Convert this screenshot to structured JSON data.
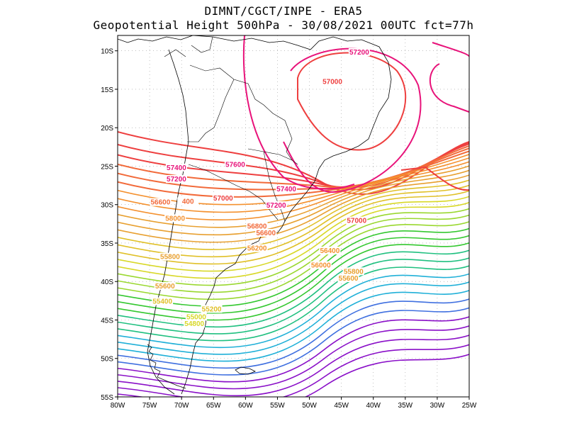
{
  "title_line1": "DIMNT/CGCT/INPE -  ERA5",
  "title_line2": "Geopotential Height 500hPa -  30/08/2021 00UTC fct=77h",
  "map": {
    "lon_range": [
      -80,
      -25
    ],
    "lat_range": [
      -55,
      -8
    ],
    "lon_ticks": [
      "80W",
      "75W",
      "70W",
      "65W",
      "60W",
      "55W",
      "50W",
      "45W",
      "40W",
      "35W",
      "30W",
      "25W"
    ],
    "lat_ticks": [
      "10S",
      "15S",
      "20S",
      "25S",
      "30S",
      "35S",
      "40S",
      "45S",
      "50S",
      "55S"
    ],
    "grid": "dotted"
  },
  "contour_labels": [
    {
      "text": "57200",
      "lon": -42.2,
      "lat": -10.4,
      "color": "#e8137a"
    },
    {
      "text": "57000",
      "lon": -46.4,
      "lat": -14.2,
      "color": "#ee3f3f"
    },
    {
      "text": "57400",
      "lon": -70.8,
      "lat": -25.4,
      "color": "#e8137a"
    },
    {
      "text": "57600",
      "lon": -61.6,
      "lat": -25.0,
      "color": "#e8137a"
    },
    {
      "text": "57200",
      "lon": -70.8,
      "lat": -26.9,
      "color": "#e8137a"
    },
    {
      "text": "57400",
      "lon": -53.6,
      "lat": -28.2,
      "color": "#e8137a"
    },
    {
      "text": "57000",
      "lon": -63.5,
      "lat": -29.4,
      "color": "#ee3f3f"
    },
    {
      "text": "56600",
      "lon": -73.3,
      "lat": -29.9,
      "color": "#f26a3a"
    },
    {
      "text": "400",
      "lon": -69.0,
      "lat": -29.8,
      "color": "#f26a3a"
    },
    {
      "text": "57200",
      "lon": -55.2,
      "lat": -30.3,
      "color": "#e8137a"
    },
    {
      "text": "57000",
      "lon": -42.6,
      "lat": -32.3,
      "color": "#ee3f3f"
    },
    {
      "text": "58000",
      "lon": -71.0,
      "lat": -32.0,
      "color": "#f4912f"
    },
    {
      "text": "56800",
      "lon": -58.2,
      "lat": -33.0,
      "color": "#f26a3a"
    },
    {
      "text": "56600",
      "lon": -56.8,
      "lat": -33.9,
      "color": "#f26a3a"
    },
    {
      "text": "56200",
      "lon": -58.2,
      "lat": -35.9,
      "color": "#f4912f"
    },
    {
      "text": "56400",
      "lon": -46.8,
      "lat": -36.2,
      "color": "#f4912f"
    },
    {
      "text": "55800",
      "lon": -71.8,
      "lat": -37.0,
      "color": "#e8a030"
    },
    {
      "text": "56000",
      "lon": -48.2,
      "lat": -38.1,
      "color": "#f4912f"
    },
    {
      "text": "55800",
      "lon": -43.1,
      "lat": -38.9,
      "color": "#e8a030"
    },
    {
      "text": "55600",
      "lon": -43.9,
      "lat": -39.8,
      "color": "#e8a030"
    },
    {
      "text": "55600",
      "lon": -72.6,
      "lat": -40.8,
      "color": "#e8a030"
    },
    {
      "text": "55400",
      "lon": -73.0,
      "lat": -42.8,
      "color": "#e0c028"
    },
    {
      "text": "55200",
      "lon": -65.3,
      "lat": -43.8,
      "color": "#e0c028"
    },
    {
      "text": "55000",
      "lon": -67.7,
      "lat": -44.8,
      "color": "#d8d828"
    },
    {
      "text": "54800",
      "lon": -68.0,
      "lat": -45.7,
      "color": "#d8d828"
    }
  ],
  "colors": {
    "frame": "#000000",
    "coast": "#000000",
    "grid": "#9a9a9a"
  }
}
